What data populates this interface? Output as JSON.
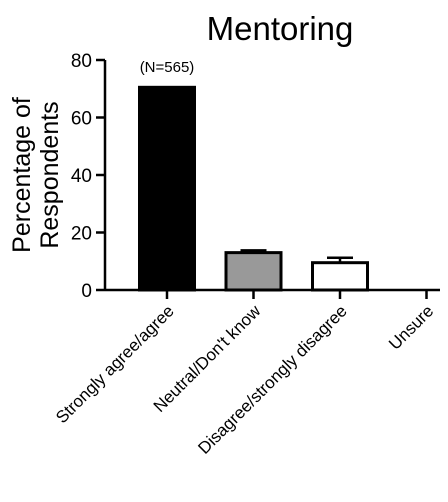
{
  "chart_data": {
    "type": "bar",
    "title": "Mentoring",
    "ylabel": [
      "Percentage of",
      "Respondents"
    ],
    "ylim": [
      0,
      80
    ],
    "yticks": [
      "0",
      "20",
      "40",
      "60",
      "80"
    ],
    "annotation": "(N=565)",
    "categories": [
      "Strongly agree/agree",
      "Neutral/Don't know",
      "Disagree/strongly disagree",
      "Unsure"
    ],
    "values": [
      70.5,
      13.0,
      9.5,
      0
    ],
    "error_upper": [
      70.5,
      13.8,
      11.2,
      0
    ],
    "bar_fill": [
      "#000000",
      "#999999",
      "#ffffff",
      "#ffffff"
    ],
    "bar_stroke": "#000000",
    "grid": false,
    "legend": "none"
  }
}
